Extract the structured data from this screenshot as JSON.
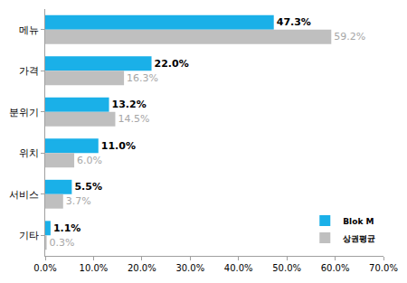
{
  "chart_data": {
    "type": "bar",
    "orientation": "horizontal",
    "categories": [
      "메뉴",
      "가격",
      "분위기",
      "위치",
      "서비스",
      "기타"
    ],
    "series": [
      {
        "name": "Blok M",
        "color": "#1ab0e8",
        "values": [
          47.3,
          22.0,
          13.2,
          11.0,
          5.5,
          1.1
        ],
        "value_labels": [
          "47.3%",
          "22.0%",
          "13.2%",
          "11.0%",
          "5.5%",
          "1.1%"
        ]
      },
      {
        "name": "상권평균",
        "color": "#bfbfbf",
        "values": [
          59.2,
          16.3,
          14.5,
          6.0,
          3.7,
          0.3
        ],
        "value_labels": [
          "59.2%",
          "16.3%",
          "14.5%",
          "6.0%",
          "3.7%",
          "0.3%"
        ]
      }
    ],
    "xlim": [
      0,
      70
    ],
    "xticks": [
      {
        "value": 0,
        "label": "0.0%"
      },
      {
        "value": 10,
        "label": "10.0%"
      },
      {
        "value": 20,
        "label": "20.0%"
      },
      {
        "value": 30,
        "label": "30.0%"
      },
      {
        "value": 40,
        "label": "40.0%"
      },
      {
        "value": 50,
        "label": "50.0%"
      },
      {
        "value": 60,
        "label": "60.0%"
      },
      {
        "value": 70,
        "label": "70.0%"
      }
    ],
    "grid": false,
    "legend": "lower right",
    "data_labels": true
  }
}
